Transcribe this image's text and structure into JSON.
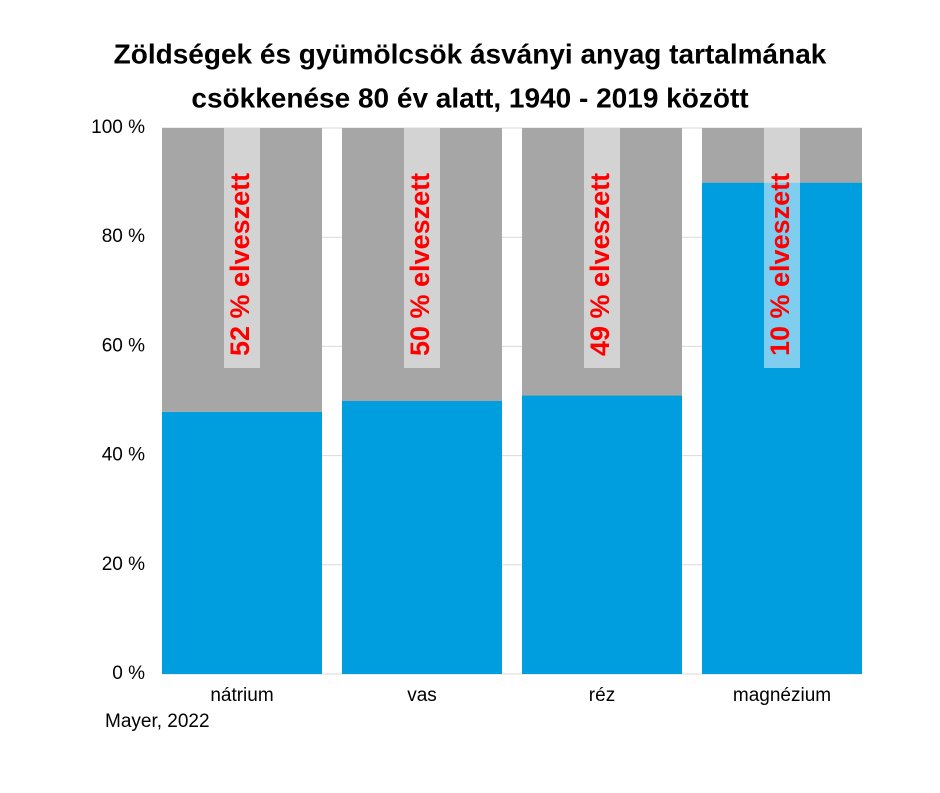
{
  "chart_data": {
    "type": "stacked-bar",
    "title": [
      "Zöldségek és gyümölcsök ásványi anyag tartalmának",
      "csökkenése 80 év alatt, 1940 - 2019 között"
    ],
    "categories": [
      "nátrium",
      "vas",
      "réz",
      "magnézium"
    ],
    "series": [
      {
        "color": "#009ddf",
        "values": [
          48,
          50,
          51,
          90
        ]
      },
      {
        "color": "#a6a6a6",
        "values": [
          52,
          50,
          49,
          10
        ],
        "value_labels": [
          "52 % elveszett",
          "50 % elveszett",
          "49 % elveszett",
          "10 % elveszett"
        ]
      }
    ],
    "ylim": [
      0,
      100
    ],
    "yticks": [
      {
        "value": 0,
        "label": "0 %"
      },
      {
        "value": 20,
        "label": "20 %"
      },
      {
        "value": 40,
        "label": "40 %"
      },
      {
        "value": 60,
        "label": "60 %"
      },
      {
        "value": 80,
        "label": "80 %"
      },
      {
        "value": 100,
        "label": "100 %"
      }
    ],
    "grid": true,
    "source": "Mayer, 2022"
  }
}
